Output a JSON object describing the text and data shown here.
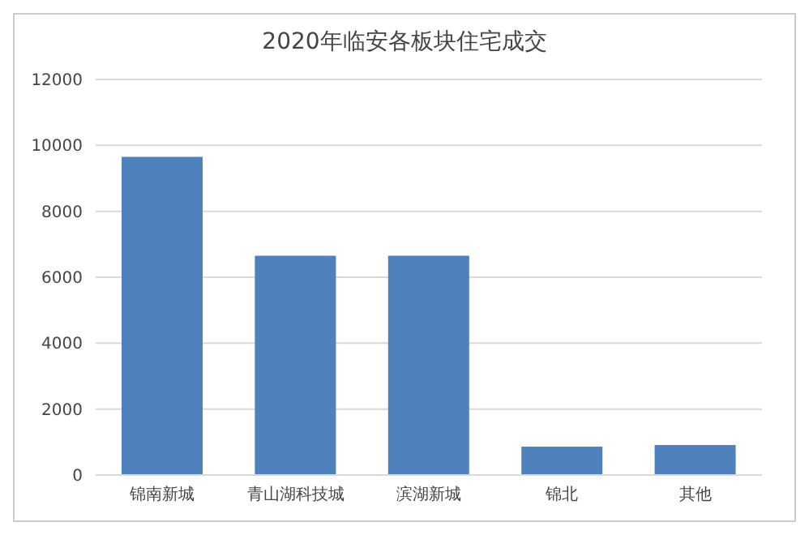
{
  "chart_data": {
    "type": "bar",
    "title": "2020年临安各板块住宅成交",
    "categories": [
      "锦南新城",
      "青山湖科技城",
      "滨湖新城",
      "锦北",
      "其他"
    ],
    "values": [
      9650,
      6650,
      6650,
      860,
      910
    ],
    "color": "#4f81bd",
    "ylim": [
      0,
      12000
    ],
    "yticks": [
      0,
      2000,
      4000,
      6000,
      8000,
      10000,
      12000
    ],
    "grid": "y"
  }
}
